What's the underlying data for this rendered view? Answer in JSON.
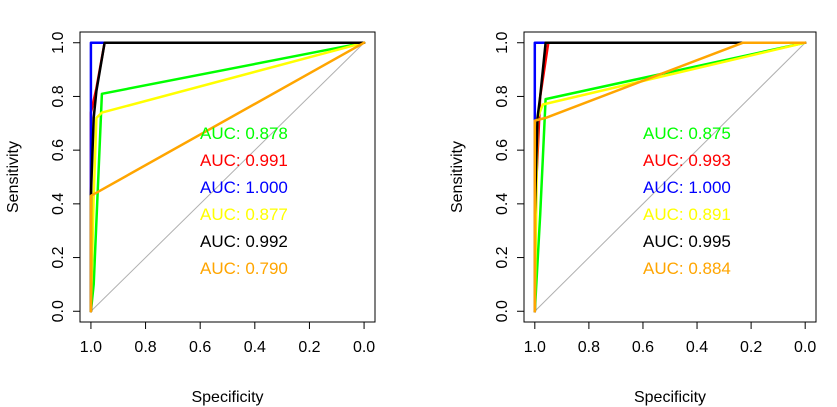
{
  "chart_data": [
    {
      "type": "line",
      "title": "",
      "xlabel": "Specificity",
      "ylabel": "Sensitivity",
      "xlim": [
        1.0,
        0.0
      ],
      "ylim": [
        0.0,
        1.0
      ],
      "x_reversed": true,
      "grid": false,
      "legend": "none",
      "x_ticks": [
        "1.0",
        "0.8",
        "0.6",
        "0.4",
        "0.2",
        "0.0"
      ],
      "y_ticks": [
        "0.0",
        "0.2",
        "0.4",
        "0.6",
        "0.8",
        "1.0"
      ],
      "reference_line": [
        [
          1.0,
          0.0
        ],
        [
          0.0,
          1.0
        ]
      ],
      "series": [
        {
          "color": "#00ff00",
          "auc": "AUC: 0.878",
          "points": [
            [
              1.0,
              0.0
            ],
            [
              0.99,
              0.1
            ],
            [
              0.96,
              0.81
            ],
            [
              0.0,
              1.0
            ]
          ]
        },
        {
          "color": "#ff0000",
          "auc": "AUC: 0.991",
          "points": [
            [
              1.0,
              0.0
            ],
            [
              1.0,
              0.74
            ],
            [
              0.98,
              0.83
            ],
            [
              0.95,
              1.0
            ],
            [
              0.0,
              1.0
            ]
          ]
        },
        {
          "color": "#0000ff",
          "auc": "AUC: 1.000",
          "points": [
            [
              1.0,
              0.0
            ],
            [
              1.0,
              1.0
            ],
            [
              0.0,
              1.0
            ]
          ]
        },
        {
          "color": "#ffff00",
          "auc": "AUC: 0.877",
          "points": [
            [
              1.0,
              0.0
            ],
            [
              0.99,
              0.43
            ],
            [
              0.98,
              0.72
            ],
            [
              0.96,
              0.74
            ],
            [
              0.0,
              1.0
            ]
          ]
        },
        {
          "color": "#000000",
          "auc": "AUC: 0.992",
          "points": [
            [
              1.0,
              0.0
            ],
            [
              1.0,
              0.43
            ],
            [
              0.99,
              0.72
            ],
            [
              0.98,
              0.82
            ],
            [
              0.95,
              1.0
            ],
            [
              0.28,
              1.0
            ],
            [
              0.0,
              1.0
            ]
          ]
        },
        {
          "color": "#ffa500",
          "auc": "AUC: 0.790",
          "points": [
            [
              1.0,
              0.0
            ],
            [
              1.0,
              0.43
            ],
            [
              0.0,
              1.0
            ]
          ]
        }
      ]
    },
    {
      "type": "line",
      "title": "",
      "xlabel": "Specificity",
      "ylabel": "Sensitivity",
      "xlim": [
        1.0,
        0.0
      ],
      "ylim": [
        0.0,
        1.0
      ],
      "x_reversed": true,
      "grid": false,
      "legend": "none",
      "x_ticks": [
        "1.0",
        "0.8",
        "0.6",
        "0.4",
        "0.2",
        "0.0"
      ],
      "y_ticks": [
        "0.0",
        "0.2",
        "0.4",
        "0.6",
        "0.8",
        "1.0"
      ],
      "reference_line": [
        [
          1.0,
          0.0
        ],
        [
          0.0,
          1.0
        ]
      ],
      "series": [
        {
          "color": "#00ff00",
          "auc": "AUC: 0.875",
          "points": [
            [
              1.0,
              0.0
            ],
            [
              0.98,
              0.36
            ],
            [
              0.96,
              0.79
            ],
            [
              0.0,
              1.0
            ]
          ]
        },
        {
          "color": "#ff0000",
          "auc": "AUC: 0.993",
          "points": [
            [
              1.0,
              0.0
            ],
            [
              1.0,
              0.36
            ],
            [
              0.98,
              0.8
            ],
            [
              0.95,
              1.0
            ],
            [
              0.0,
              1.0
            ]
          ]
        },
        {
          "color": "#0000ff",
          "auc": "AUC: 1.000",
          "points": [
            [
              1.0,
              0.0
            ],
            [
              1.0,
              1.0
            ],
            [
              0.0,
              1.0
            ]
          ]
        },
        {
          "color": "#ffff00",
          "auc": "AUC: 0.891",
          "points": [
            [
              1.0,
              0.0
            ],
            [
              0.99,
              0.72
            ],
            [
              0.97,
              0.77
            ],
            [
              0.0,
              1.0
            ]
          ]
        },
        {
          "color": "#000000",
          "auc": "AUC: 0.995",
          "points": [
            [
              1.0,
              0.0
            ],
            [
              1.0,
              0.36
            ],
            [
              0.99,
              0.72
            ],
            [
              0.98,
              0.8
            ],
            [
              0.96,
              1.0
            ],
            [
              0.23,
              1.0
            ],
            [
              0.0,
              1.0
            ]
          ]
        },
        {
          "color": "#ffa500",
          "auc": "AUC: 0.884",
          "points": [
            [
              1.0,
              0.0
            ],
            [
              1.0,
              0.71
            ],
            [
              0.96,
              0.72
            ],
            [
              0.23,
              1.0
            ],
            [
              0.0,
              1.0
            ]
          ]
        }
      ]
    }
  ]
}
